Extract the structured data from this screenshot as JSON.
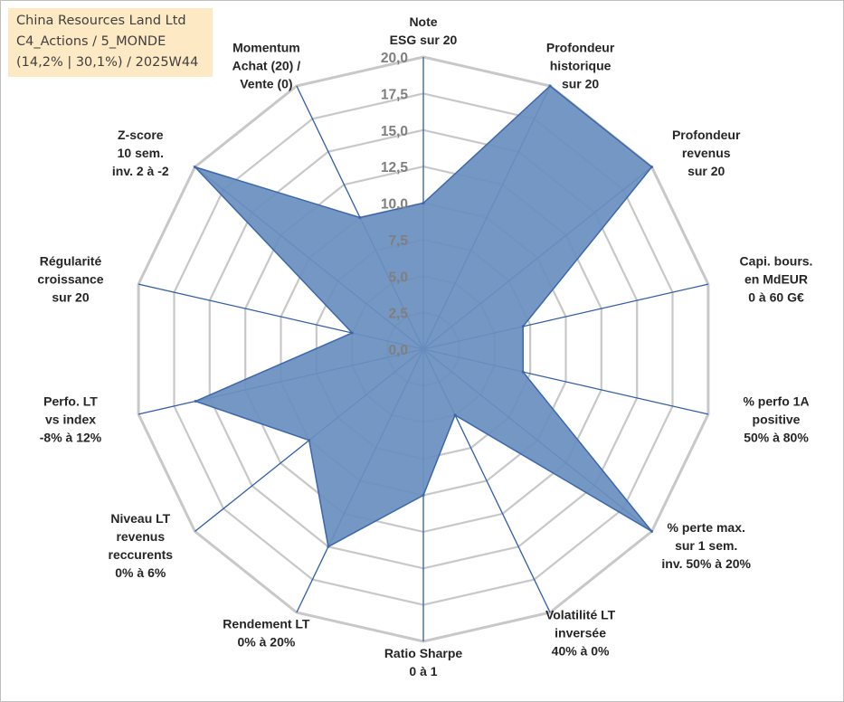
{
  "info_box": {
    "line1": "China Resources Land Ltd",
    "line2": "C4_Actions / 5_MONDE",
    "line3": "(14,2% | 30,1%) / 2025W44"
  },
  "colors": {
    "grid": "#c8c8c8",
    "spoke": "#2e5da8",
    "fill": "#6b8fbe",
    "stroke": "#3a67ad",
    "info_box_bg": "#fde9c4"
  },
  "chart_data": {
    "type": "radar",
    "rlim": [
      0,
      20
    ],
    "grid_step": 2.5,
    "grid": true,
    "tick_labels": [
      "0,0",
      "2,5",
      "5,0",
      "7,5",
      "10,0",
      "12,5",
      "15,0",
      "17,5",
      "20,0"
    ],
    "axes": [
      {
        "lines": [
          "Note",
          "ESG sur 20"
        ]
      },
      {
        "lines": [
          "Profondeur",
          "historique",
          "sur 20"
        ]
      },
      {
        "lines": [
          "Profondeur",
          "revenus",
          "sur 20"
        ]
      },
      {
        "lines": [
          "Capi. bours.",
          "en MdEUR",
          "0 à 60 G€"
        ]
      },
      {
        "lines": [
          "% perfo 1A",
          "positive",
          "50% à 80%"
        ]
      },
      {
        "lines": [
          "% perte max.",
          "sur 1 sem.",
          "inv. 50% à 20%"
        ]
      },
      {
        "lines": [
          "Volatilité LT",
          "inversée",
          "40% à 0%"
        ]
      },
      {
        "lines": [
          "Ratio Sharpe",
          "0 à 1"
        ]
      },
      {
        "lines": [
          "Rendement LT",
          "0% à 20%"
        ]
      },
      {
        "lines": [
          "Niveau LT",
          "revenus",
          "reccurents",
          "0% à 6%"
        ]
      },
      {
        "lines": [
          "Perfo. LT",
          "vs index",
          "-8% à 12%"
        ]
      },
      {
        "lines": [
          "Régularité",
          "croissance",
          "sur 20"
        ]
      },
      {
        "lines": [
          "Z-score",
          "10 sem.",
          "inv. 2 à -2"
        ]
      },
      {
        "lines": [
          "Momentum",
          "Achat (20) /",
          "Vente (0)"
        ]
      }
    ],
    "series": [
      {
        "values": [
          10.0,
          20.0,
          20.0,
          7.0,
          7.0,
          20.0,
          5.0,
          10.0,
          15.0,
          10.0,
          16.0,
          5.0,
          20.0,
          10.0
        ]
      }
    ]
  }
}
